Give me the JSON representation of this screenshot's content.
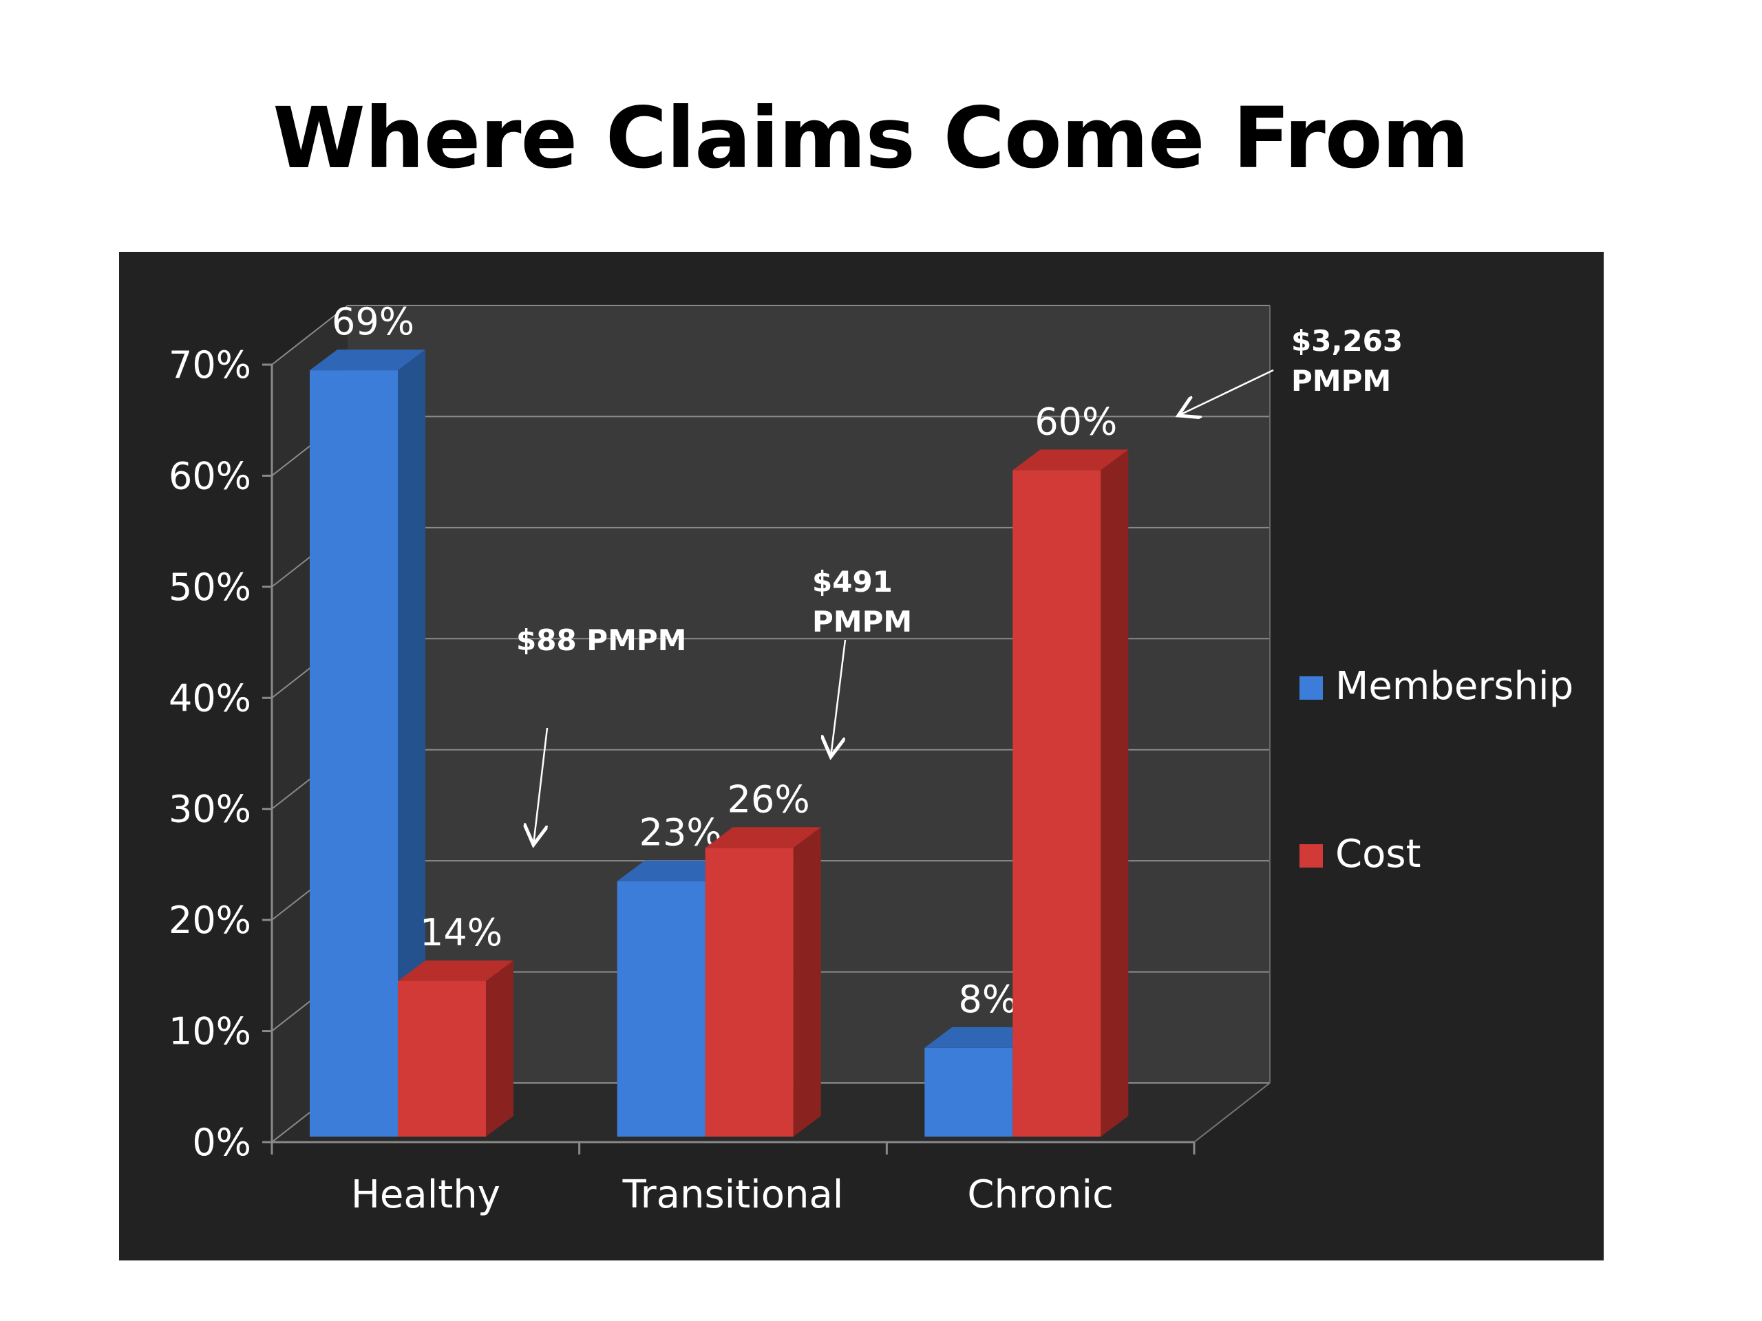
{
  "title": "Where Claims Come From",
  "chart_data": {
    "type": "bar",
    "three_d": true,
    "categories": [
      "Healthy",
      "Transitional",
      "Chronic"
    ],
    "series": [
      {
        "name": "Membership",
        "values": [
          69,
          23,
          8
        ],
        "labels": [
          "69%",
          "23%",
          "8%"
        ],
        "color": "#3B7DD8",
        "side_color": "#24528F",
        "top_color": "#2F66B5"
      },
      {
        "name": "Cost",
        "values": [
          14,
          26,
          60
        ],
        "labels": [
          "14%",
          "26%",
          "60%"
        ],
        "color": "#D13A36",
        "side_color": "#8A2320",
        "top_color": "#B72E2B"
      }
    ],
    "ylim": [
      0,
      70
    ],
    "yticks": [
      0,
      10,
      20,
      30,
      40,
      50,
      60,
      70
    ],
    "ytick_labels": [
      "0%",
      "10%",
      "20%",
      "30%",
      "40%",
      "50%",
      "60%",
      "70%"
    ],
    "grid": true,
    "legend_position": "right",
    "annotations": [
      {
        "lines": [
          "$88 PMPM"
        ],
        "category": "Healthy",
        "series": "Cost"
      },
      {
        "lines": [
          "$491",
          "PMPM"
        ],
        "category": "Transitional",
        "series": "Cost"
      },
      {
        "lines": [
          "$3,263",
          "PMPM"
        ],
        "category": "Chronic",
        "series": "Cost"
      }
    ],
    "background": "#222222",
    "wall_color": "#3A3A3A",
    "floor_color": "#2A2A2A",
    "gridline_color": "#8A8A8A"
  }
}
